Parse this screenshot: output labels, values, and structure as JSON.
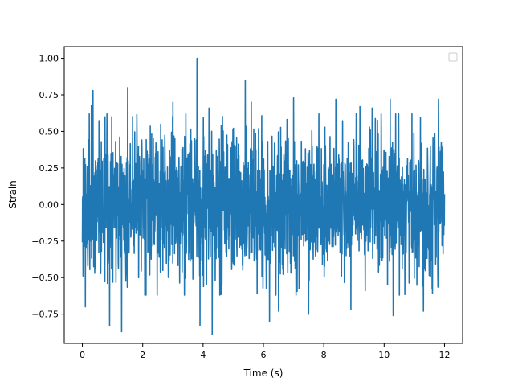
{
  "chart_data": {
    "type": "line",
    "title": "",
    "xlabel": "Time (s)",
    "ylabel": "Strain",
    "xlim": [
      -0.6,
      12.6
    ],
    "ylim": [
      -0.95,
      1.08
    ],
    "xticks": [
      0,
      2,
      4,
      6,
      8,
      10,
      12
    ],
    "yticks": [
      -0.75,
      -0.5,
      -0.25,
      0.0,
      0.25,
      0.5,
      0.75,
      1.0
    ],
    "xtick_labels": [
      "0",
      "2",
      "4",
      "6",
      "8",
      "10",
      "12"
    ],
    "ytick_labels": [
      "−0.75",
      "−0.50",
      "−0.25",
      "0.00",
      "0.25",
      "0.50",
      "0.75",
      "1.00"
    ],
    "grid": false,
    "legend": {
      "placement": "upper right",
      "entries": []
    },
    "series": [
      {
        "color": "#1f77b4",
        "x_range": [
          0,
          12
        ],
        "samples": 2048,
        "noise_envelope": [
          -0.89,
          1.0
        ],
        "typical_band": [
          -0.45,
          0.45
        ],
        "peaks": [
          {
            "x": 0.3,
            "y": 0.68
          },
          {
            "x": 0.35,
            "y": 0.78
          },
          {
            "x": 0.75,
            "y": 0.6
          },
          {
            "x": 1.5,
            "y": 0.8
          },
          {
            "x": 3.0,
            "y": 0.7
          },
          {
            "x": 3.8,
            "y": 1.0
          },
          {
            "x": 4.2,
            "y": 0.66
          },
          {
            "x": 5.4,
            "y": 0.85
          },
          {
            "x": 5.6,
            "y": 0.7
          },
          {
            "x": 6.2,
            "y": 0.9
          },
          {
            "x": 7.0,
            "y": 0.73
          },
          {
            "x": 8.4,
            "y": 0.72
          },
          {
            "x": 9.2,
            "y": 0.67
          },
          {
            "x": 9.6,
            "y": 0.66
          },
          {
            "x": 10.2,
            "y": 0.72
          },
          {
            "x": 11.3,
            "y": 0.73
          },
          {
            "x": 11.8,
            "y": 0.72
          }
        ],
        "troughs": [
          {
            "x": 0.1,
            "y": -0.7
          },
          {
            "x": 0.9,
            "y": -0.83
          },
          {
            "x": 1.3,
            "y": -0.87
          },
          {
            "x": 3.9,
            "y": -0.83
          },
          {
            "x": 4.3,
            "y": -0.89
          },
          {
            "x": 6.2,
            "y": -0.8
          },
          {
            "x": 6.5,
            "y": -0.73
          },
          {
            "x": 7.5,
            "y": -0.75
          },
          {
            "x": 8.9,
            "y": -0.72
          },
          {
            "x": 10.3,
            "y": -0.76
          },
          {
            "x": 11.3,
            "y": -0.73
          }
        ]
      }
    ]
  }
}
